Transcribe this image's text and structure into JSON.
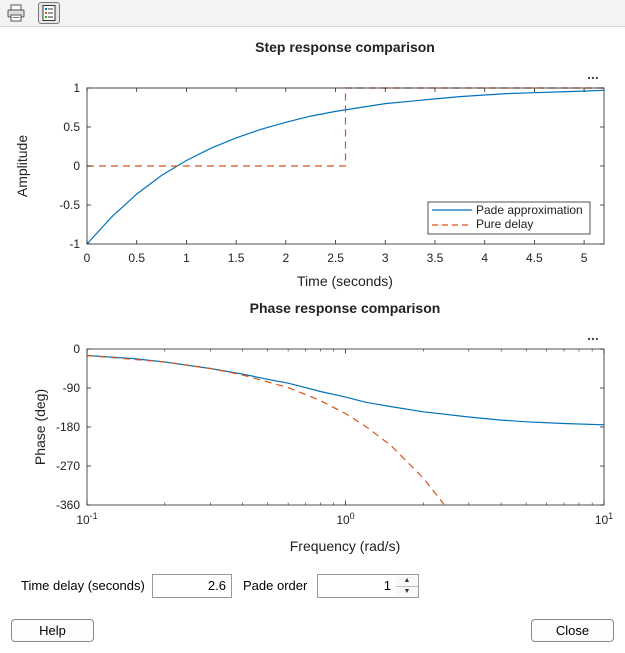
{
  "toolbar": {
    "buttons": [
      {
        "icon": "printer-icon"
      },
      {
        "icon": "legend-toggle-icon"
      }
    ]
  },
  "plots": [
    {
      "title": "Step response comparison",
      "more_label": "...",
      "xlabel": "Time (seconds)",
      "ylabel": "Amplitude",
      "x_ticks": [
        "0",
        "0.5",
        "1",
        "1.5",
        "2",
        "2.5",
        "3",
        "3.5",
        "4",
        "4.5",
        "5"
      ],
      "y_ticks": [
        "1",
        "0.5",
        "0",
        "-0.5",
        "-1"
      ],
      "legend": [
        "Pade approximation",
        "Pure delay"
      ]
    },
    {
      "title": "Phase response comparison",
      "more_label": "...",
      "xlabel": "Frequency (rad/s)",
      "ylabel": "Phase (deg)",
      "x_ticks": [
        {
          "base": "10",
          "exp": "-1"
        },
        {
          "base": "10",
          "exp": "0"
        },
        {
          "base": "10",
          "exp": "1"
        }
      ],
      "y_ticks": [
        "0",
        "-90",
        "-180",
        "-270",
        "-360"
      ]
    }
  ],
  "chart_data": [
    {
      "type": "line",
      "title": "Step response comparison",
      "xlabel": "Time (seconds)",
      "ylabel": "Amplitude",
      "xlim": [
        0,
        5.2
      ],
      "ylim": [
        -1,
        1
      ],
      "grid": false,
      "legend_position": "bottom-right",
      "reference_line": {
        "y": 1,
        "style": "dotted"
      },
      "series": [
        {
          "name": "Pade approximation",
          "color": "#0072bd",
          "style": "solid",
          "x": [
            0,
            0.25,
            0.5,
            0.75,
            1,
            1.25,
            1.5,
            1.75,
            2,
            2.25,
            2.5,
            2.75,
            3,
            3.25,
            3.5,
            3.75,
            4,
            4.25,
            4.5,
            4.75,
            5,
            5.2
          ],
          "y": [
            -1,
            -0.65,
            -0.36,
            -0.12,
            0.07,
            0.23,
            0.36,
            0.47,
            0.56,
            0.64,
            0.7,
            0.75,
            0.8,
            0.83,
            0.86,
            0.89,
            0.91,
            0.93,
            0.94,
            0.95,
            0.96,
            0.97
          ]
        },
        {
          "name": "Pure delay",
          "color": "#d95319",
          "style": "dashed",
          "x": [
            0,
            2.6,
            2.6,
            5.2
          ],
          "y": [
            0,
            0,
            1,
            1
          ]
        }
      ]
    },
    {
      "type": "line",
      "title": "Phase response comparison",
      "xlabel": "Frequency (rad/s)",
      "ylabel": "Phase (deg)",
      "xscale": "log",
      "xlim": [
        0.1,
        10
      ],
      "ylim": [
        -360,
        0
      ],
      "grid": false,
      "series": [
        {
          "name": "Pade approximation",
          "color": "#0072bd",
          "style": "solid",
          "x": [
            0.1,
            0.15,
            0.2,
            0.3,
            0.4,
            0.5,
            0.6,
            0.7,
            0.8,
            1,
            1.2,
            1.5,
            2,
            3,
            4,
            5,
            7,
            10
          ],
          "y": [
            -15,
            -22,
            -30,
            -45,
            -58,
            -70,
            -79,
            -89,
            -98,
            -111,
            -123,
            -133,
            -145,
            -157,
            -164,
            -168,
            -172,
            -175
          ]
        },
        {
          "name": "Pure delay",
          "color": "#d95319",
          "style": "dashed",
          "x": [
            0.1,
            0.2,
            0.3,
            0.4,
            0.6,
            0.8,
            1,
            1.2,
            1.5,
            2,
            2.4
          ],
          "y": [
            -15,
            -30,
            -45,
            -60,
            -89,
            -119,
            -149,
            -179,
            -223,
            -298,
            -358
          ]
        }
      ]
    }
  ],
  "controls": {
    "time_delay_label": "Time delay (seconds)",
    "time_delay_value": "2.6",
    "pade_order_label": "Pade order",
    "pade_order_value": "1",
    "spinner_up": "▲",
    "spinner_down": "▼"
  },
  "buttons": {
    "help": "Help",
    "close": "Close"
  }
}
